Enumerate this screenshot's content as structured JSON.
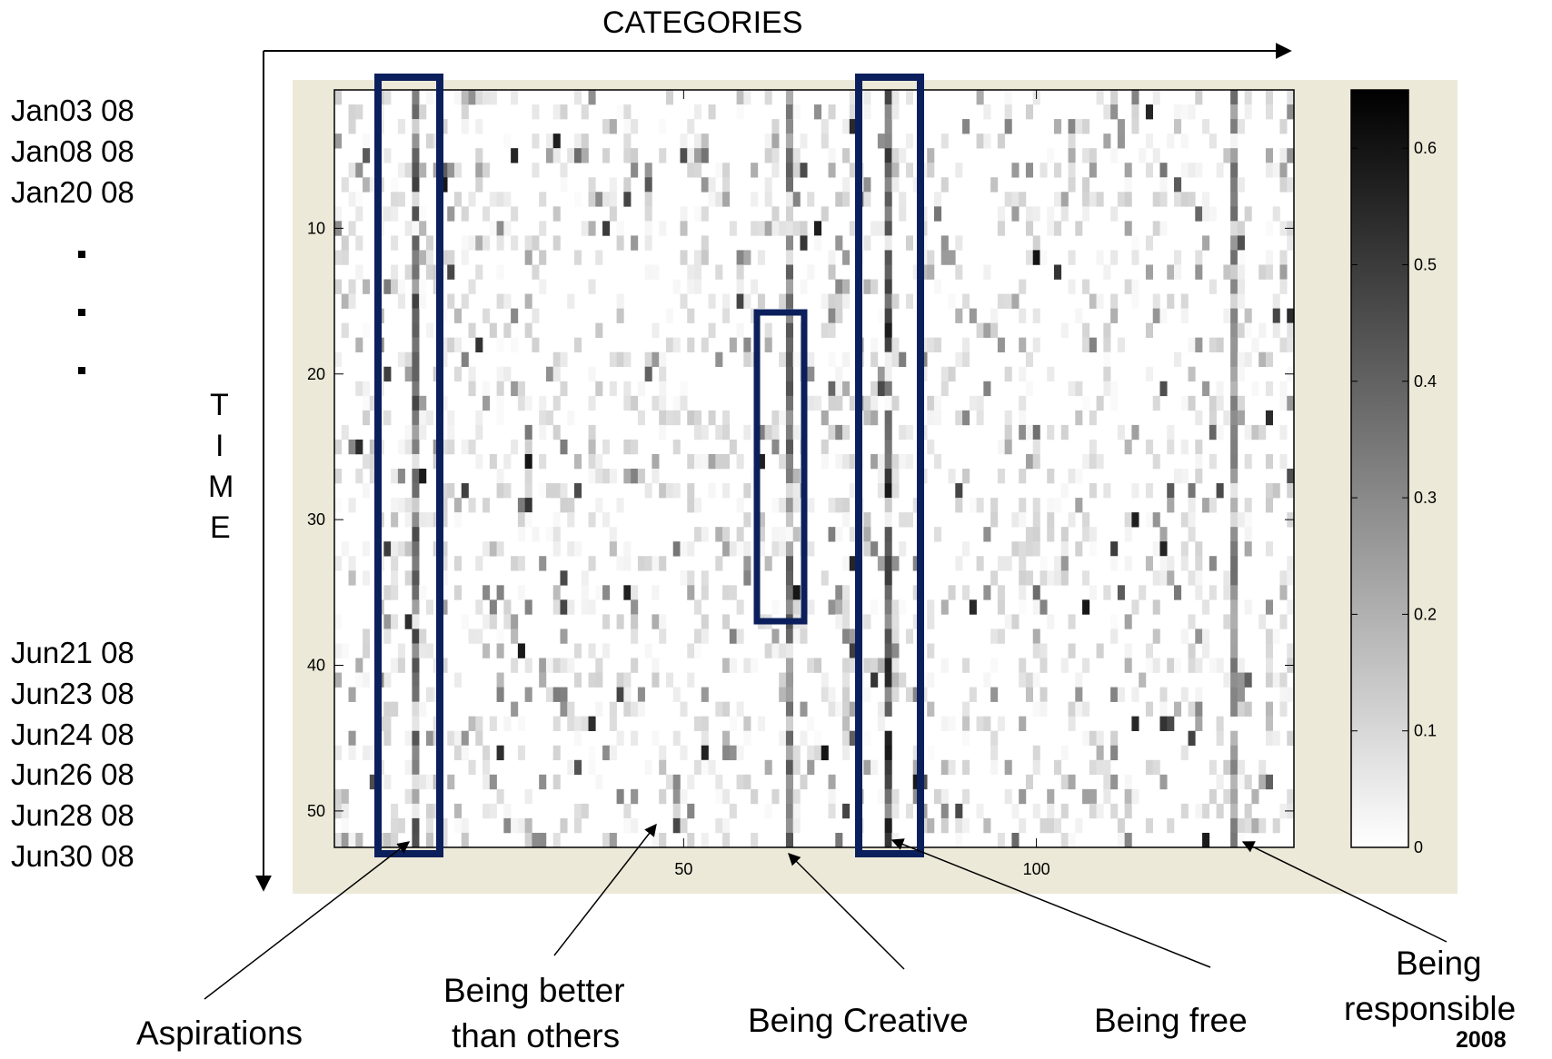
{
  "axes": {
    "categories_label": "CATEGORIES",
    "time_letters": [
      "T",
      "I",
      "M",
      "E"
    ],
    "dates_top": [
      "Jan03 08",
      "Jan08 08",
      "Jan20 08"
    ],
    "dates_bottom": [
      "Jun21 08",
      "Jun23 08",
      "Jun24 08",
      "Jun26 08",
      "Jun28 08",
      "Jun30 08"
    ]
  },
  "annotations": {
    "aspirations": "Aspirations",
    "being_better_line1": "Being better",
    "being_better_line2": "than others",
    "being_creative": "Being Creative",
    "being_free": "Being free",
    "being_responsible_line1": "Being",
    "being_responsible_line2": "responsible",
    "year": "2008"
  },
  "colors": {
    "highlight_box": "#0b1f5c",
    "figure_background": "#ece9d8"
  },
  "chart_data": {
    "type": "heatmap",
    "colormap": "gray-reversed",
    "n_categories": 136,
    "n_timesteps": 52,
    "xlim": [
      0.5,
      136.5
    ],
    "ylim": [
      0.5,
      52.5
    ],
    "x_ticks": [
      50,
      100
    ],
    "y_ticks": [
      10,
      20,
      30,
      40,
      50
    ],
    "colorbar": {
      "range": [
        0,
        0.65
      ],
      "ticks": [
        0,
        0.1,
        0.2,
        0.3,
        0.4,
        0.5,
        0.6
      ]
    },
    "highlighted_columns": [
      {
        "name": "Aspirations",
        "x_range": [
          7,
          14
        ],
        "y_range": [
          1,
          52
        ]
      },
      {
        "name": "Being Creative",
        "x_range": [
          61,
          67
        ],
        "y_range": [
          16,
          37
        ]
      },
      {
        "name": "Being free",
        "x_range": [
          76,
          83
        ],
        "y_range": [
          1,
          52
        ]
      }
    ],
    "strong_columns": [
      {
        "x": 12,
        "value": 0.45
      },
      {
        "x": 79,
        "value": 0.55
      },
      {
        "x": 65,
        "value": 0.4
      },
      {
        "x": 128,
        "value": 0.35
      }
    ]
  }
}
